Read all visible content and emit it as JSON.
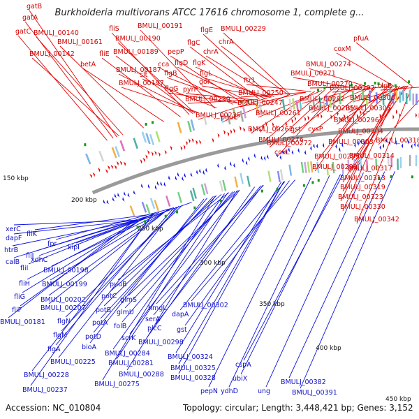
{
  "title": "Burkholderia multivorans ATCC 17616 chromosome 1, complete g...",
  "footer": {
    "accession": "Accession: NC_010804",
    "summary": "Topology: circular; Length: 3,448,421 bp; Genes: 3,152"
  },
  "colors": {
    "forward": "#e60000",
    "reverse": "#0a10e0",
    "backbone": "#9a9a9a"
  },
  "kbp_labels": [
    "150 kbp",
    "200 kbp",
    "250 kbp",
    "300 kbp",
    "350 kbp",
    "400 kbp",
    "450 kbp"
  ],
  "forward_labels": [
    "gatB",
    "gatA",
    "gatC",
    "BMULJ_00140",
    "BMULJ_00142",
    "BMULJ_00161",
    "betA",
    "fliS",
    "fliE",
    "BMULJ_00191",
    "BMULJ_00190",
    "BMULJ_00189",
    "BMULJ_00187",
    "slt",
    "BMULJ_00197",
    "cca",
    "pepP",
    "flgD",
    "flgB",
    "flgG",
    "flgE",
    "flgC",
    "flgK",
    "flgL",
    "pyrP",
    "BMULJ_00229",
    "chrA",
    "chrA",
    "gor",
    "BMULJ_00230",
    "BMULJ_00235",
    "puuC",
    "ftr1",
    "BMULJ_00250",
    "BMULJ_00247",
    "BMULJ_00261",
    "BMULJ_00262",
    "coxL",
    "BMULJ_00272",
    "BMULJ_00276",
    "gst",
    "cysP",
    "pfuA",
    "coxM",
    "BMULJ_00274",
    "BMULJ_00271",
    "BMULJ_00270",
    "BMULJ_00282",
    "BMULJ_00285",
    "BMULJ_00292",
    "clpB",
    "BMULJ_00306",
    "BMULJ_00305",
    "BMULJ_00296",
    "BMULJ_00304",
    "BMULJ_00303",
    "BMULJ_00318",
    "BMULJ_00295",
    "BMULJ_00314",
    "BMULJ_00299",
    "BMULJ_00317",
    "BMULJ_00313",
    "BMULJ_00319",
    "BMULJ_00323",
    "BMULJ_00330",
    "BMULJ_00342"
  ],
  "reverse_labels": [
    "xerC",
    "dapF",
    "htrB",
    "calB",
    "fliJ",
    "fliI",
    "fliH",
    "fliG",
    "fliF",
    "BMULJ_00181",
    "fliK",
    "xdhC",
    "fpr",
    "kipI",
    "BMULJ_00198",
    "BMULJ_00199",
    "BMULJ_00202",
    "BMULJ_00207",
    "flgN",
    "flgM",
    "flgA",
    "BMULJ_00225",
    "BMULJ_00228",
    "BMULJ_00237",
    "bioA",
    "potD",
    "potA",
    "potB",
    "potC",
    "puuB",
    "glmS",
    "glmU",
    "folB",
    "scrK",
    "BMULJ_00284",
    "BMULJ_00281",
    "BMULJ_00275",
    "BMULJ_00288",
    "hmgL",
    "serA",
    "plcC",
    "gst",
    "dapA",
    "BMULJ_00298",
    "BMULJ_00302",
    "BMULJ_00324",
    "BMULJ_00325",
    "BMULJ_00328",
    "pepN",
    "ydhD",
    "ubiX",
    "cspA",
    "ung",
    "BMULJ_00382",
    "BMULJ_00391"
  ]
}
